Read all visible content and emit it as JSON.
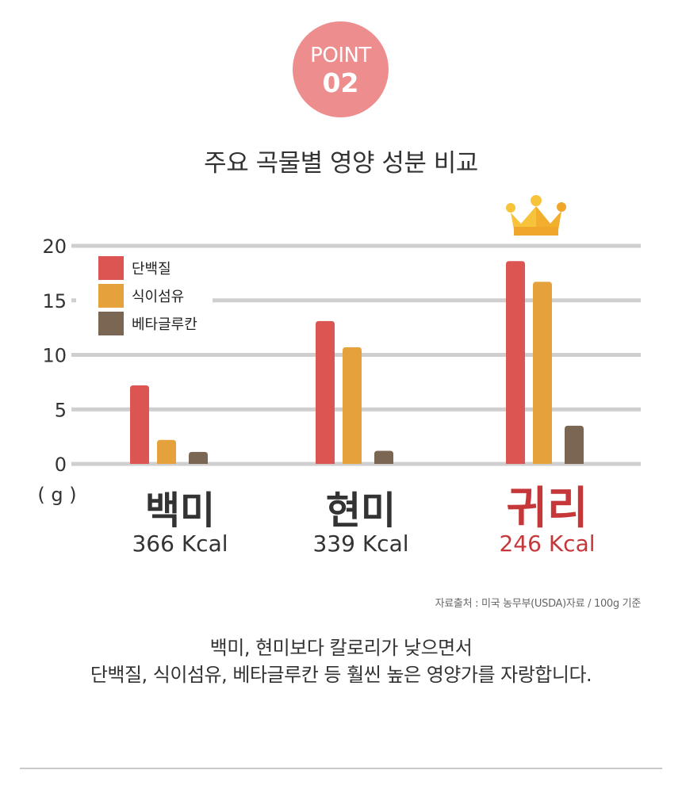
{
  "badge": {
    "line1": "POINT",
    "line2": "02"
  },
  "title": "주요 곡물별 영양 성분 비교",
  "chart_data": {
    "type": "bar",
    "title": "주요 곡물별 영양 성분 비교",
    "ylabel": "( g )",
    "ylim": [
      0,
      20
    ],
    "yticks": [
      0,
      5,
      10,
      15,
      20
    ],
    "grid": true,
    "legend_position": "top-left",
    "categories": [
      {
        "name": "백미",
        "kcal": "366 Kcal",
        "highlight": false
      },
      {
        "name": "현미",
        "kcal": "339 Kcal",
        "highlight": false
      },
      {
        "name": "귀리",
        "kcal": "246 Kcal",
        "highlight": true
      }
    ],
    "series": [
      {
        "name": "단백질",
        "color": "#dd5552",
        "values": [
          7.2,
          13.1,
          18.6
        ]
      },
      {
        "name": "식이섬유",
        "color": "#e5a23c",
        "values": [
          2.2,
          10.7,
          16.7
        ]
      },
      {
        "name": "베타글루칸",
        "color": "#7b6654",
        "values": [
          1.1,
          1.2,
          3.5
        ]
      }
    ],
    "highlight_color": "#c6373a",
    "crown_icon": "crown-icon"
  },
  "source": "자료출처 : 미국 농무부(USDA)자료 / 100g 기준",
  "summary": {
    "line1": "백미, 현미보다 칼로리가 낮으면서",
    "line2": "단백질, 식이섬유, 베타글루칸 등 훨씬 높은 영양가를 자랑합니다."
  }
}
